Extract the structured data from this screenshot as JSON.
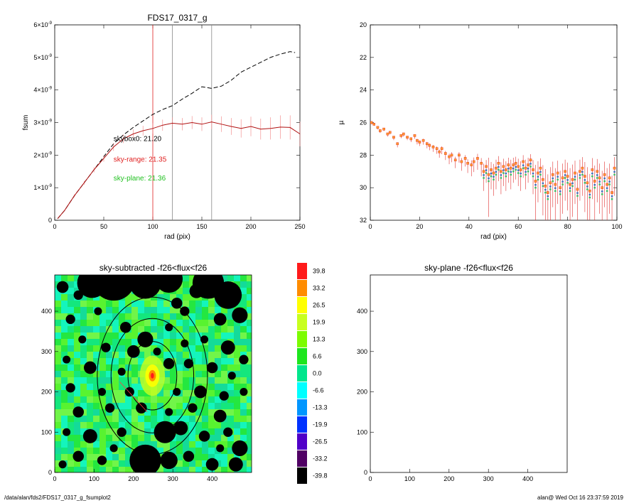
{
  "chart_data": [
    {
      "type": "line",
      "title": "FDS17_0317_g",
      "xlabel": "rad (pix)",
      "ylabel": "fsum",
      "xlim": [
        0,
        250
      ],
      "ylim": [
        0,
        6e-09
      ],
      "xticks": [
        "0",
        "50",
        "100",
        "150",
        "200",
        "250"
      ],
      "yticks": [
        {
          "value": 0,
          "mant": "0",
          "exp": ""
        },
        {
          "value": 1e-09,
          "mant": "1×10",
          "exp": "-9"
        },
        {
          "value": 2e-09,
          "mant": "2×10",
          "exp": "-9"
        },
        {
          "value": 3e-09,
          "mant": "3×10",
          "exp": "-9"
        },
        {
          "value": 4e-09,
          "mant": "4×10",
          "exp": "-9"
        },
        {
          "value": 5e-09,
          "mant": "5×10",
          "exp": "-9"
        },
        {
          "value": 6e-09,
          "mant": "6×10",
          "exp": "-9"
        }
      ],
      "vlines": [
        {
          "x": 100,
          "color": "#e02020"
        },
        {
          "x": 120,
          "color": "#888888"
        },
        {
          "x": 160,
          "color": "#888888"
        }
      ],
      "series": [
        {
          "style": "dashed",
          "color": "#000000",
          "x": [
            3,
            10,
            20,
            30,
            40,
            50,
            60,
            70,
            80,
            90,
            100,
            110,
            120,
            130,
            140,
            150,
            160,
            170,
            180,
            190,
            200,
            210,
            220,
            230,
            240,
            245
          ],
          "y": [
            5e-11,
            3e-10,
            7.5e-10,
            1.15e-09,
            1.55e-09,
            1.95e-09,
            2.35e-09,
            2.62e-09,
            2.85e-09,
            3.05e-09,
            3.25e-09,
            3.4e-09,
            3.52e-09,
            3.72e-09,
            3.9e-09,
            4.1e-09,
            4.05e-09,
            4.12e-09,
            4.3e-09,
            4.55e-09,
            4.7e-09,
            4.85e-09,
            5e-09,
            5.1e-09,
            5.18e-09,
            5.15e-09
          ]
        },
        {
          "style": "solid",
          "color": "#b01010",
          "errcolor": "#f08080",
          "x": [
            3,
            10,
            20,
            30,
            40,
            50,
            60,
            70,
            80,
            90,
            100,
            110,
            120,
            130,
            140,
            150,
            160,
            170,
            180,
            190,
            200,
            210,
            220,
            230,
            240,
            250
          ],
          "y": [
            5e-11,
            3e-10,
            7.5e-10,
            1.15e-09,
            1.55e-09,
            1.9e-09,
            2.25e-09,
            2.5e-09,
            2.65e-09,
            2.75e-09,
            2.82e-09,
            2.92e-09,
            2.98e-09,
            2.95e-09,
            3e-09,
            2.95e-09,
            3.02e-09,
            2.95e-09,
            2.88e-09,
            2.82e-09,
            2.88e-09,
            2.8e-09,
            2.82e-09,
            2.86e-09,
            2.85e-09,
            2.65e-09
          ],
          "err": [
            0,
            2e-11,
            4e-11,
            6e-11,
            8e-11,
            1e-10,
            1.2e-10,
            1.3e-10,
            1.4e-10,
            1.5e-10,
            1.6e-10,
            1.7e-10,
            1.8e-10,
            1.9e-10,
            2e-10,
            2.1e-10,
            2.2e-10,
            2.4e-10,
            2.6e-10,
            2.8e-10,
            3e-10,
            3.2e-10,
            3.4e-10,
            3.6e-10,
            3.7e-10,
            3.8e-10
          ]
        }
      ],
      "annotations": [
        {
          "text": "skybox0: 21.20",
          "color": "#000000",
          "x": 60,
          "y": 2.43e-09
        },
        {
          "text": "sky-range: 21.35",
          "color": "#e02020",
          "x": 60,
          "y": 1.8e-09
        },
        {
          "text": "sky-plane: 21.36",
          "color": "#20c020",
          "x": 60,
          "y": 1.22e-09
        }
      ]
    },
    {
      "type": "scatter",
      "title": "",
      "xlabel": "rad (pix)",
      "ylabel": "µ",
      "xlim": [
        0,
        100
      ],
      "ylim": [
        32,
        20
      ],
      "xticks": [
        "0",
        "20",
        "40",
        "60",
        "80",
        "100"
      ],
      "yticks": [
        "20",
        "22",
        "24",
        "26",
        "28",
        "30",
        "32"
      ],
      "point_colors": [
        "#ff9d2e",
        "#e02020",
        "#30c060",
        "#3070c0"
      ],
      "errcolor": "#e03030",
      "x": [
        0.5,
        1.5,
        3,
        4,
        5.5,
        7,
        8,
        9.5,
        11,
        12.5,
        13.5,
        15,
        16.5,
        18,
        19,
        20,
        21.5,
        23,
        24,
        25.5,
        27,
        28,
        29,
        30.5,
        32,
        33,
        34.5,
        36,
        37,
        38.5,
        39.5,
        41,
        42,
        43.5,
        45,
        46,
        47,
        48,
        49,
        50,
        51,
        52,
        53,
        54,
        55,
        56,
        57,
        58,
        59,
        60,
        61,
        62,
        63,
        64,
        65,
        66,
        67,
        68,
        69,
        70,
        71,
        72,
        73,
        74,
        75,
        76,
        77,
        78,
        79,
        80,
        81,
        82,
        83,
        84,
        85,
        86,
        87,
        88,
        89,
        90,
        91,
        92,
        93,
        94,
        95,
        96,
        97,
        98,
        99
      ],
      "y": [
        26.0,
        26.1,
        26.3,
        26.5,
        26.4,
        26.7,
        26.6,
        26.9,
        27.3,
        26.8,
        26.7,
        26.9,
        27.0,
        26.8,
        27.1,
        27.2,
        27.1,
        27.3,
        27.4,
        27.5,
        27.6,
        27.8,
        27.6,
        27.9,
        28.1,
        28.0,
        28.3,
        28.0,
        28.4,
        28.2,
        28.5,
        28.6,
        28.4,
        28.2,
        28.5,
        29.0,
        28.7,
        29.2,
        28.9,
        29.1,
        28.8,
        28.5,
        29.0,
        28.7,
        28.9,
        28.6,
        28.8,
        28.6,
        28.5,
        28.7,
        28.9,
        28.4,
        28.8,
        28.6,
        28.3,
        28.9,
        29.6,
        29.1,
        28.8,
        29.5,
        29.9,
        30.3,
        29.7,
        29.2,
        29.8,
        29.1,
        30.0,
        29.4,
        29.0,
        29.3,
        29.8,
        29.5,
        29.1,
        30.1,
        29.0,
        28.8,
        29.3,
        29.7,
        30.2,
        28.9,
        29.6,
        29.0,
        29.4,
        30.0,
        29.2,
        29.8,
        29.4,
        30.3,
        28.8
      ],
      "err": [
        0.1,
        0.1,
        0.12,
        0.14,
        0.12,
        0.16,
        0.14,
        0.18,
        0.22,
        0.16,
        0.16,
        0.18,
        0.2,
        0.2,
        0.24,
        0.24,
        0.26,
        0.28,
        0.3,
        0.3,
        0.32,
        0.36,
        0.34,
        0.4,
        0.46,
        0.44,
        0.5,
        0.46,
        0.56,
        0.5,
        0.6,
        0.7,
        0.64,
        0.7,
        0.8,
        1.2,
        1.0,
        2.6,
        1.2,
        1.4,
        1.3,
        1.1,
        1.4,
        1.2,
        1.3,
        1.1,
        1.3,
        1.1,
        1.0,
        1.2,
        1.3,
        1.0,
        1.3,
        1.1,
        0.9,
        1.5,
        2.5,
        1.8,
        1.5,
        2.2,
        2.6,
        2.8,
        2.4,
        2.0,
        2.5,
        1.9,
        2.6,
        2.2,
        1.8,
        2.1,
        2.5,
        2.3,
        1.9,
        2.6,
        1.8,
        1.7,
        2.2,
        2.4,
        2.6,
        1.8,
        2.4,
        1.9,
        2.2,
        2.6,
        2.0,
        2.5,
        2.2,
        2.6,
        1.7
      ]
    },
    {
      "type": "heatmap",
      "title": "sky-subtracted -f26<flux<f26",
      "xlim": [
        0,
        500
      ],
      "ylim": [
        0,
        490
      ],
      "xticks": [
        "0",
        "100",
        "200",
        "300",
        "400"
      ],
      "yticks": [
        "0",
        "100",
        "200",
        "300",
        "400"
      ]
    },
    {
      "type": "heatmap",
      "title": "sky-plane -f26<flux<f26",
      "xlim": [
        0,
        500
      ],
      "ylim": [
        0,
        490
      ],
      "xticks": [
        "0",
        "100",
        "200",
        "300",
        "400"
      ],
      "yticks": [
        "0",
        "100",
        "200",
        "300",
        "400"
      ]
    }
  ],
  "image": {
    "center": [
      248,
      240
    ],
    "ellipses": [
      {
        "rx": 140,
        "ry": 195
      },
      {
        "rx": 105,
        "ry": 142
      },
      {
        "rx": 62,
        "ry": 85
      }
    ],
    "masks": [
      [
        95,
        470,
        38
      ],
      [
        150,
        480,
        55
      ],
      [
        230,
        470,
        40
      ],
      [
        290,
        480,
        35
      ],
      [
        390,
        470,
        40
      ],
      [
        440,
        440,
        35
      ],
      [
        20,
        460,
        15
      ],
      [
        60,
        440,
        12
      ],
      [
        310,
        420,
        14
      ],
      [
        360,
        450,
        18
      ],
      [
        470,
        390,
        20
      ],
      [
        40,
        380,
        12
      ],
      [
        110,
        400,
        10
      ],
      [
        180,
        360,
        14
      ],
      [
        290,
        360,
        10
      ],
      [
        330,
        400,
        12
      ],
      [
        420,
        380,
        16
      ],
      [
        70,
        330,
        10
      ],
      [
        130,
        310,
        12
      ],
      [
        330,
        320,
        10
      ],
      [
        380,
        330,
        10
      ],
      [
        440,
        310,
        18
      ],
      [
        480,
        280,
        12
      ],
      [
        30,
        280,
        10
      ],
      [
        90,
        260,
        16
      ],
      [
        170,
        250,
        10
      ],
      [
        200,
        300,
        16
      ],
      [
        230,
        330,
        20
      ],
      [
        260,
        300,
        10
      ],
      [
        290,
        270,
        14
      ],
      [
        340,
        270,
        12
      ],
      [
        400,
        260,
        14
      ],
      [
        450,
        240,
        10
      ],
      [
        40,
        210,
        12
      ],
      [
        120,
        200,
        10
      ],
      [
        190,
        200,
        12
      ],
      [
        310,
        200,
        10
      ],
      [
        370,
        200,
        16
      ],
      [
        430,
        190,
        12
      ],
      [
        480,
        200,
        10
      ],
      [
        60,
        150,
        14
      ],
      [
        140,
        160,
        12
      ],
      [
        220,
        160,
        14
      ],
      [
        290,
        150,
        10
      ],
      [
        350,
        160,
        12
      ],
      [
        420,
        140,
        16
      ],
      [
        30,
        100,
        10
      ],
      [
        90,
        90,
        18
      ],
      [
        170,
        100,
        12
      ],
      [
        280,
        100,
        28
      ],
      [
        320,
        110,
        18
      ],
      [
        380,
        90,
        14
      ],
      [
        440,
        100,
        12
      ],
      [
        470,
        60,
        20
      ],
      [
        60,
        40,
        14
      ],
      [
        120,
        30,
        12
      ],
      [
        230,
        30,
        40
      ],
      [
        290,
        30,
        22
      ],
      [
        340,
        40,
        14
      ],
      [
        400,
        20,
        16
      ],
      [
        460,
        20,
        18
      ],
      [
        20,
        20,
        10
      ],
      [
        150,
        60,
        10
      ],
      [
        420,
        60,
        10
      ]
    ]
  },
  "colorbar": {
    "labels": [
      "39.8",
      "33.2",
      "26.5",
      "19.9",
      "13.3",
      "6.6",
      "0.0",
      "-6.6",
      "-13.3",
      "-19.9",
      "-26.5",
      "-33.2",
      "-39.8"
    ],
    "colors": [
      "#ff1a1a",
      "#ff8c00",
      "#ffff00",
      "#c8ff1e",
      "#7cfc00",
      "#1ee61e",
      "#00e68c",
      "#00ffff",
      "#0096ff",
      "#0032ff",
      "#5000c8",
      "#500064",
      "#000000"
    ]
  },
  "footer": {
    "left": "/data/alan/fds2/FDS17_0317_g_fsumplot2",
    "right": "alan@  Wed Oct 16 23:37:59 2019"
  }
}
